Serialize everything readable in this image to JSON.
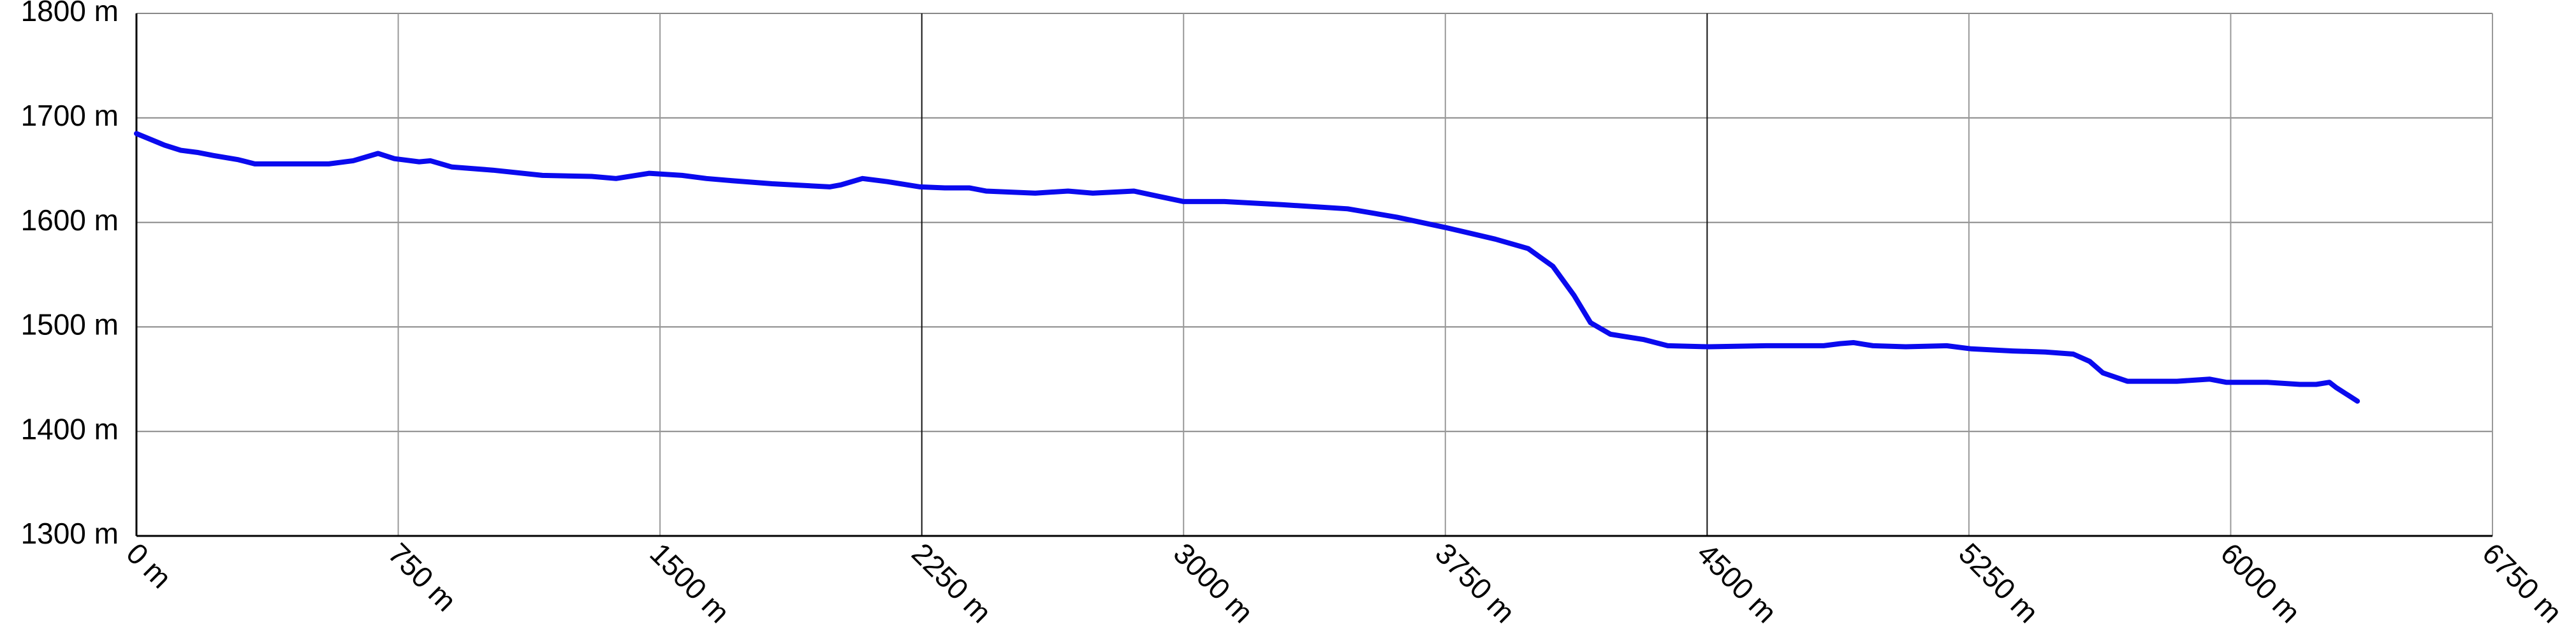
{
  "chart_data": {
    "type": "line",
    "x": [
      0,
      80,
      127,
      174,
      221,
      292,
      339,
      480,
      551,
      621,
      692,
      739,
      810,
      842,
      904,
      1021,
      1163,
      1304,
      1374,
      1469,
      1563,
      1633,
      1704,
      1821,
      1986,
      2019,
      2080,
      2151,
      2245,
      2316,
      2387,
      2434,
      2575,
      2669,
      2740,
      2857,
      2928,
      2999,
      3117,
      3281,
      3470,
      3611,
      3752,
      3893,
      3987,
      4058,
      4119,
      4166,
      4223,
      4317,
      4387,
      4505,
      4669,
      4834,
      4881,
      4919,
      4975,
      5069,
      5186,
      5257,
      5375,
      5469,
      5549,
      5596,
      5634,
      5704,
      5846,
      5940,
      5987,
      6104,
      6198,
      6245,
      6283,
      6302,
      6363
    ],
    "values": [
      1685,
      1674,
      1669,
      1667,
      1664,
      1660,
      1656,
      1656,
      1656,
      1659,
      1666,
      1661,
      1658,
      1659,
      1653,
      1650,
      1645,
      1644,
      1642,
      1647,
      1645,
      1642,
      1640,
      1637,
      1634,
      1636,
      1642,
      1639,
      1634,
      1633,
      1633,
      1630,
      1628,
      1630,
      1628,
      1630,
      1625,
      1620,
      1620,
      1617,
      1613,
      1605,
      1595,
      1584,
      1575,
      1558,
      1530,
      1504,
      1493,
      1488,
      1482,
      1481,
      1482,
      1482,
      1484,
      1485,
      1482,
      1481,
      1482,
      1479,
      1477,
      1476,
      1474,
      1467,
      1456,
      1448,
      1448,
      1450,
      1447,
      1447,
      1445,
      1445,
      1447,
      1442,
      1429
    ],
    "color": "#0a0aee",
    "xlim": [
      0,
      6750
    ],
    "xticks": [
      {
        "value": 0,
        "label": "0 m"
      },
      {
        "value": 750,
        "label": "750 m"
      },
      {
        "value": 1500,
        "label": "1500 m"
      },
      {
        "value": 2250,
        "label": "2250 m"
      },
      {
        "value": 3000,
        "label": "3000 m"
      },
      {
        "value": 3750,
        "label": "3750 m"
      },
      {
        "value": 4500,
        "label": "4500 m"
      },
      {
        "value": 5250,
        "label": "5250 m"
      },
      {
        "value": 6000,
        "label": "6000 m"
      },
      {
        "value": 6750,
        "label": "6750 m"
      }
    ],
    "ylim": [
      1300,
      1800
    ],
    "yticks": [
      {
        "value": 1300,
        "label": "1300 m"
      },
      {
        "value": 1400,
        "label": "1400 m"
      },
      {
        "value": 1500,
        "label": "1500 m"
      },
      {
        "value": 1600,
        "label": "1600 m"
      },
      {
        "value": 1700,
        "label": "1700 m"
      },
      {
        "value": 1800,
        "label": "1800 m"
      }
    ],
    "grid": true
  }
}
